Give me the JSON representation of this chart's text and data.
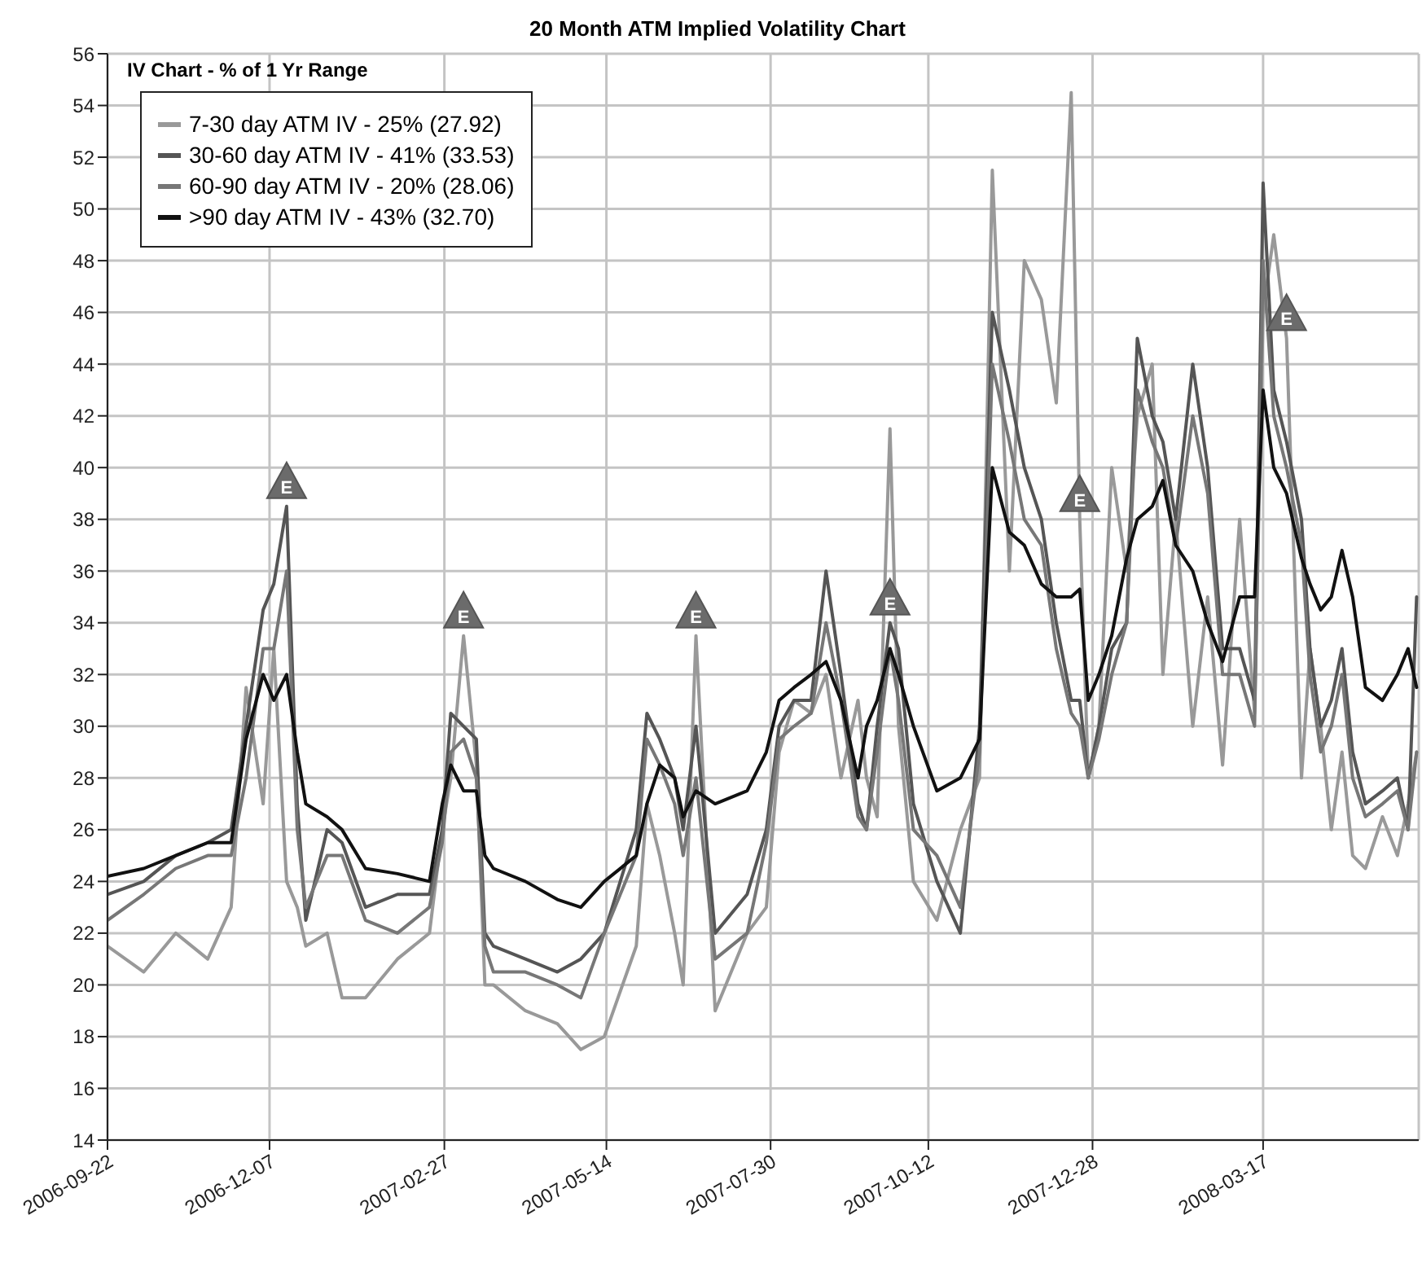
{
  "chart_data": {
    "type": "line",
    "title": "20 Month ATM Implied Volatility Chart",
    "legend_title": "IV Chart - % of 1 Yr Range",
    "legend": "top left",
    "grid": true,
    "marker": "none",
    "line_style": "solid",
    "x": [
      "2006-09-22",
      "2006-10-09",
      "2006-10-24",
      "2006-11-08",
      "2006-11-19",
      "2006-11-26",
      "2006-12-04",
      "2006-12-09",
      "2006-12-15",
      "2006-12-20",
      "2006-12-24",
      "2007-01-03",
      "2007-01-10",
      "2007-01-21",
      "2007-02-05",
      "2007-02-20",
      "2007-02-26",
      "2007-03-02",
      "2007-03-08",
      "2007-03-14",
      "2007-03-18",
      "2007-03-22",
      "2007-04-06",
      "2007-04-21",
      "2007-05-02",
      "2007-05-13",
      "2007-05-28",
      "2007-06-02",
      "2007-06-08",
      "2007-06-15",
      "2007-06-19",
      "2007-06-25",
      "2007-07-04",
      "2007-07-19",
      "2007-07-28",
      "2007-08-03",
      "2007-08-10",
      "2007-08-18",
      "2007-08-25",
      "2007-09-01",
      "2007-09-09",
      "2007-09-13",
      "2007-09-18",
      "2007-09-24",
      "2007-09-28",
      "2007-10-05",
      "2007-10-16",
      "2007-10-27",
      "2007-11-05",
      "2007-11-11",
      "2007-11-19",
      "2007-11-26",
      "2007-12-04",
      "2007-12-11",
      "2007-12-18",
      "2007-12-22",
      "2007-12-26",
      "2007-12-31",
      "2008-01-06",
      "2008-01-13",
      "2008-01-18",
      "2008-01-25",
      "2008-01-30",
      "2008-02-05",
      "2008-02-13",
      "2008-02-20",
      "2008-02-27",
      "2008-03-06",
      "2008-03-13",
      "2008-03-17",
      "2008-03-22",
      "2008-03-28",
      "2008-04-04",
      "2008-04-08",
      "2008-04-13",
      "2008-04-18",
      "2008-04-23",
      "2008-04-28",
      "2008-05-04",
      "2008-05-12",
      "2008-05-19",
      "2008-05-24",
      "2008-05-28"
    ],
    "series": [
      {
        "name": "7-30 day ATM IV - 25% (27.92)",
        "color": "#999999",
        "values": [
          21.5,
          20.5,
          22,
          21,
          23,
          31.5,
          27,
          33,
          24,
          23,
          21.5,
          22,
          19.5,
          19.5,
          21,
          22,
          26,
          28,
          33.5,
          28.5,
          20,
          20,
          19,
          18.5,
          17.5,
          18,
          21.5,
          27,
          25,
          22,
          20,
          33.5,
          19,
          22,
          23,
          29,
          31,
          30.5,
          32,
          28,
          31,
          28,
          26.5,
          41.5,
          30,
          24,
          22.5,
          26,
          28,
          51.5,
          36,
          48,
          46.5,
          42.5,
          54.5,
          38,
          28,
          30,
          40,
          36,
          42,
          44,
          32,
          38,
          30,
          35,
          28.5,
          38,
          30.5,
          46,
          49,
          45,
          28,
          33,
          30,
          26,
          29,
          25,
          24.5,
          26.5,
          25,
          27,
          29
        ]
      },
      {
        "name": "30-60 day ATM IV - 41% (33.53)",
        "color": "#555555",
        "values": [
          23.5,
          24,
          25,
          25.5,
          26,
          30,
          34.5,
          35.5,
          38.5,
          27,
          22.5,
          26,
          25.5,
          23,
          23.5,
          23.5,
          26,
          30.5,
          30,
          29.5,
          22,
          21.5,
          21,
          20.5,
          21,
          22,
          26,
          30.5,
          29.5,
          28,
          26,
          30,
          22,
          23.5,
          26,
          30,
          31,
          31,
          36,
          32,
          27,
          26,
          30,
          34,
          33,
          27,
          24,
          22,
          30,
          46,
          43,
          40,
          38,
          34,
          31,
          31,
          28,
          30,
          33,
          34,
          45,
          42,
          41,
          38,
          44,
          40,
          33,
          33,
          31,
          51,
          43,
          41,
          38,
          33,
          30,
          31,
          33,
          29,
          27,
          27.5,
          28,
          26,
          35
        ]
      },
      {
        "name": "60-90 day ATM IV - 20% (28.06)",
        "color": "#777777",
        "values": [
          22.5,
          23.5,
          24.5,
          25,
          25,
          28,
          33,
          33,
          36,
          26,
          23,
          25,
          25,
          22.5,
          22,
          23,
          25.5,
          29,
          29.5,
          28,
          21.5,
          20.5,
          20.5,
          20,
          19.5,
          22,
          25,
          29.5,
          28.5,
          27,
          25,
          28,
          21,
          22,
          25.5,
          29.5,
          30,
          30.5,
          34,
          31,
          26.5,
          26,
          29,
          33,
          31,
          26,
          25,
          23,
          29,
          44,
          41,
          38,
          37,
          33,
          30.5,
          30,
          28,
          29.5,
          32,
          34,
          43,
          41,
          40,
          37,
          42,
          39,
          32,
          32,
          30,
          48,
          42,
          40,
          37,
          32,
          29,
          30,
          32,
          28,
          26.5,
          27,
          27.5,
          26,
          29
        ]
      },
      {
        "name": ">90 day ATM IV - 43% (32.70)",
        "color": "#111111",
        "values": [
          24.2,
          24.5,
          25,
          25.5,
          25.5,
          29.5,
          32,
          31,
          32,
          29,
          27,
          26.5,
          26,
          24.5,
          24.3,
          24,
          27,
          28.5,
          27.5,
          27.5,
          25,
          24.5,
          24,
          23.3,
          23,
          24,
          25,
          27,
          28.5,
          28,
          26.5,
          27.5,
          27,
          27.5,
          29,
          31,
          31.5,
          32,
          32.5,
          31,
          28,
          30,
          31,
          33,
          32,
          30,
          27.5,
          28,
          29.5,
          40,
          37.5,
          37,
          35.5,
          35,
          35,
          35.3,
          31,
          32,
          33.5,
          36.5,
          38,
          38.5,
          39.5,
          37,
          36,
          34,
          32.5,
          35,
          35,
          43,
          40,
          39,
          36.5,
          35.5,
          34.5,
          35,
          36.8,
          35,
          31.5,
          31,
          32,
          33,
          31.5
        ]
      }
    ],
    "xlim": [
      "2006-09-22",
      "2008-05-29"
    ],
    "xticks": [
      "2006-09-22",
      "2006-12-07",
      "2007-02-27",
      "2007-05-14",
      "2007-07-30",
      "2007-10-12",
      "2007-12-28",
      "2008-03-17"
    ],
    "ylim": [
      14,
      56
    ],
    "yticks": [
      14,
      16,
      18,
      20,
      22,
      24,
      26,
      28,
      30,
      32,
      34,
      36,
      38,
      40,
      42,
      44,
      46,
      48,
      50,
      52,
      54,
      56
    ],
    "annotations": [
      {
        "text": "E",
        "x": "2006-12-15",
        "y": 38.5
      },
      {
        "text": "E",
        "x": "2007-03-08",
        "y": 33.5
      },
      {
        "text": "E",
        "x": "2007-06-25",
        "y": 33.5
      },
      {
        "text": "E",
        "x": "2007-09-24",
        "y": 34
      },
      {
        "text": "E",
        "x": "2007-12-22",
        "y": 38
      },
      {
        "text": "E",
        "x": "2008-03-28",
        "y": 45
      }
    ]
  }
}
